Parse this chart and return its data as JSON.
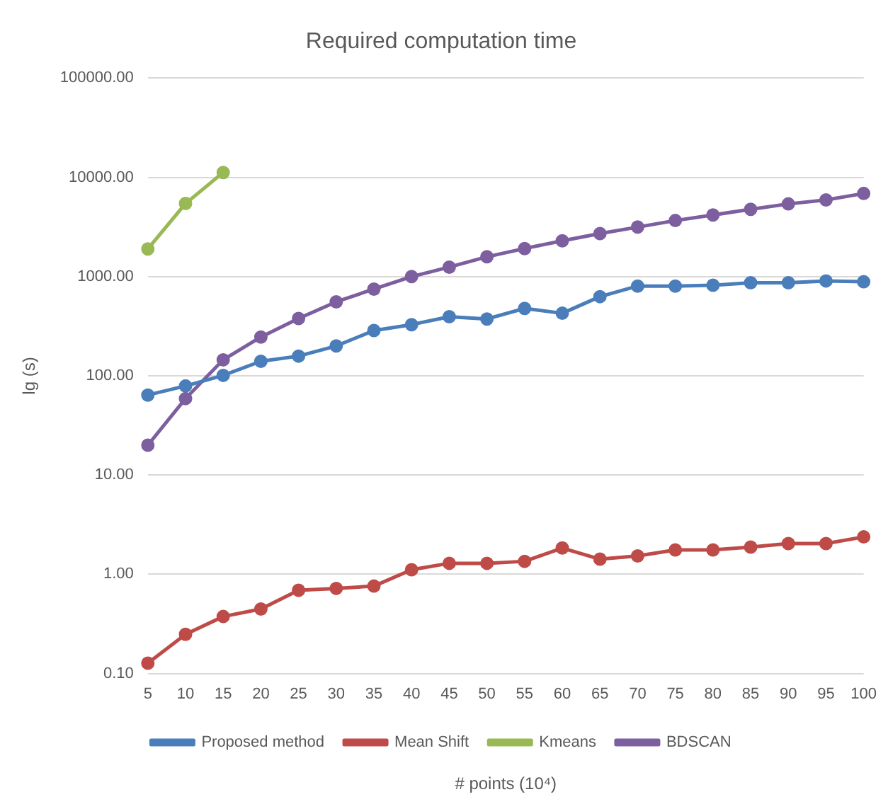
{
  "chart_data": {
    "type": "line",
    "title": "Required computation time",
    "xlabel": "# points (10⁴)",
    "ylabel": "lg (s)",
    "categories": [
      "5",
      "10",
      "15",
      "20",
      "25",
      "30",
      "35",
      "40",
      "45",
      "50",
      "55",
      "60",
      "65",
      "70",
      "75",
      "80",
      "85",
      "90",
      "95",
      "100"
    ],
    "series": [
      {
        "name": "Proposed method",
        "color": "#4a7ebb",
        "values": [
          64,
          79,
          101,
          140,
          158,
          200,
          286,
          328,
          394,
          374,
          478,
          427,
          628,
          803,
          803,
          818,
          868,
          868,
          905,
          887
        ]
      },
      {
        "name": "Mean Shift",
        "color": "#be4b48",
        "values": [
          0.127,
          0.248,
          0.375,
          0.447,
          0.69,
          0.72,
          0.76,
          1.11,
          1.29,
          1.29,
          1.35,
          1.84,
          1.42,
          1.53,
          1.76,
          1.76,
          1.88,
          2.04,
          2.04,
          2.38
        ]
      },
      {
        "name": "Kmeans",
        "color": "#98b954",
        "values": [
          1900,
          5450,
          11200,
          null,
          null,
          null,
          null,
          null,
          null,
          null,
          null,
          null,
          null,
          null,
          null,
          null,
          null,
          null,
          null,
          null
        ]
      },
      {
        "name": "BDSCAN",
        "color": "#7d5fa0",
        "values": [
          20,
          59,
          145,
          246,
          378,
          557,
          748,
          1000,
          1246,
          1583,
          1917,
          2295,
          2716,
          3155,
          3672,
          4180,
          4760,
          5400,
          5920,
          6880
        ]
      }
    ],
    "log": "y",
    "ylim": [
      0.1,
      100000
    ],
    "yticks": [
      {
        "value": 0.1,
        "label": "0.10"
      },
      {
        "value": 1,
        "label": "1.00"
      },
      {
        "value": 10,
        "label": "10.00"
      },
      {
        "value": 100,
        "label": "100.00"
      },
      {
        "value": 1000,
        "label": "1000.00"
      },
      {
        "value": 10000,
        "label": "10000.00"
      },
      {
        "value": 100000,
        "label": "100000.00"
      }
    ],
    "grid": "y",
    "legend": "bottom",
    "marker": "circle",
    "line_style": "solid"
  }
}
